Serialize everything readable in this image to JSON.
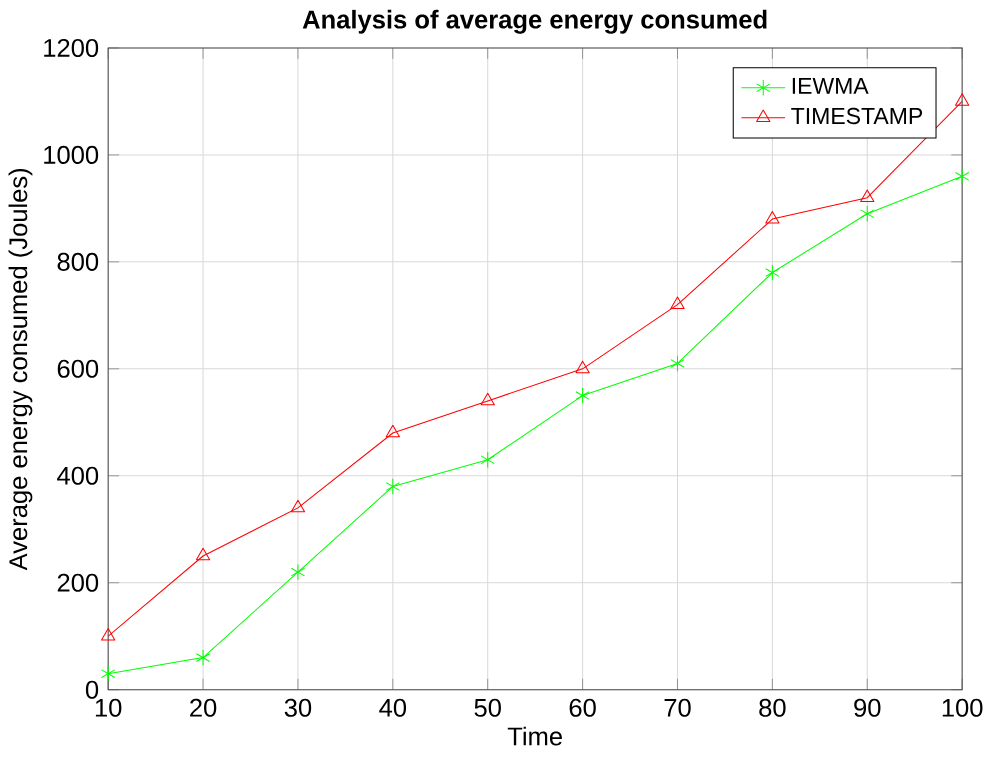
{
  "chart_data": {
    "type": "line",
    "title": "Analysis of average energy consumed",
    "xlabel": "Time",
    "ylabel": "Average energy consumed (Joules)",
    "x": [
      10,
      20,
      30,
      40,
      50,
      60,
      70,
      80,
      90,
      100
    ],
    "series": [
      {
        "name": "IEWMA",
        "color": "#00ff00",
        "marker": "cross",
        "values": [
          30,
          60,
          220,
          380,
          430,
          550,
          610,
          780,
          890,
          960
        ]
      },
      {
        "name": "TIMESTAMP",
        "color": "#ff0000",
        "marker": "triangle",
        "values": [
          100,
          250,
          340,
          480,
          540,
          600,
          720,
          880,
          920,
          1100
        ]
      }
    ],
    "xlim": [
      10,
      100
    ],
    "ylim": [
      0,
      1200
    ],
    "xticks": [
      10,
      20,
      30,
      40,
      50,
      60,
      70,
      80,
      90,
      100
    ],
    "yticks": [
      0,
      200,
      400,
      600,
      800,
      1000,
      1200
    ],
    "grid": true,
    "legend": "top right",
    "line_style": "solid"
  }
}
